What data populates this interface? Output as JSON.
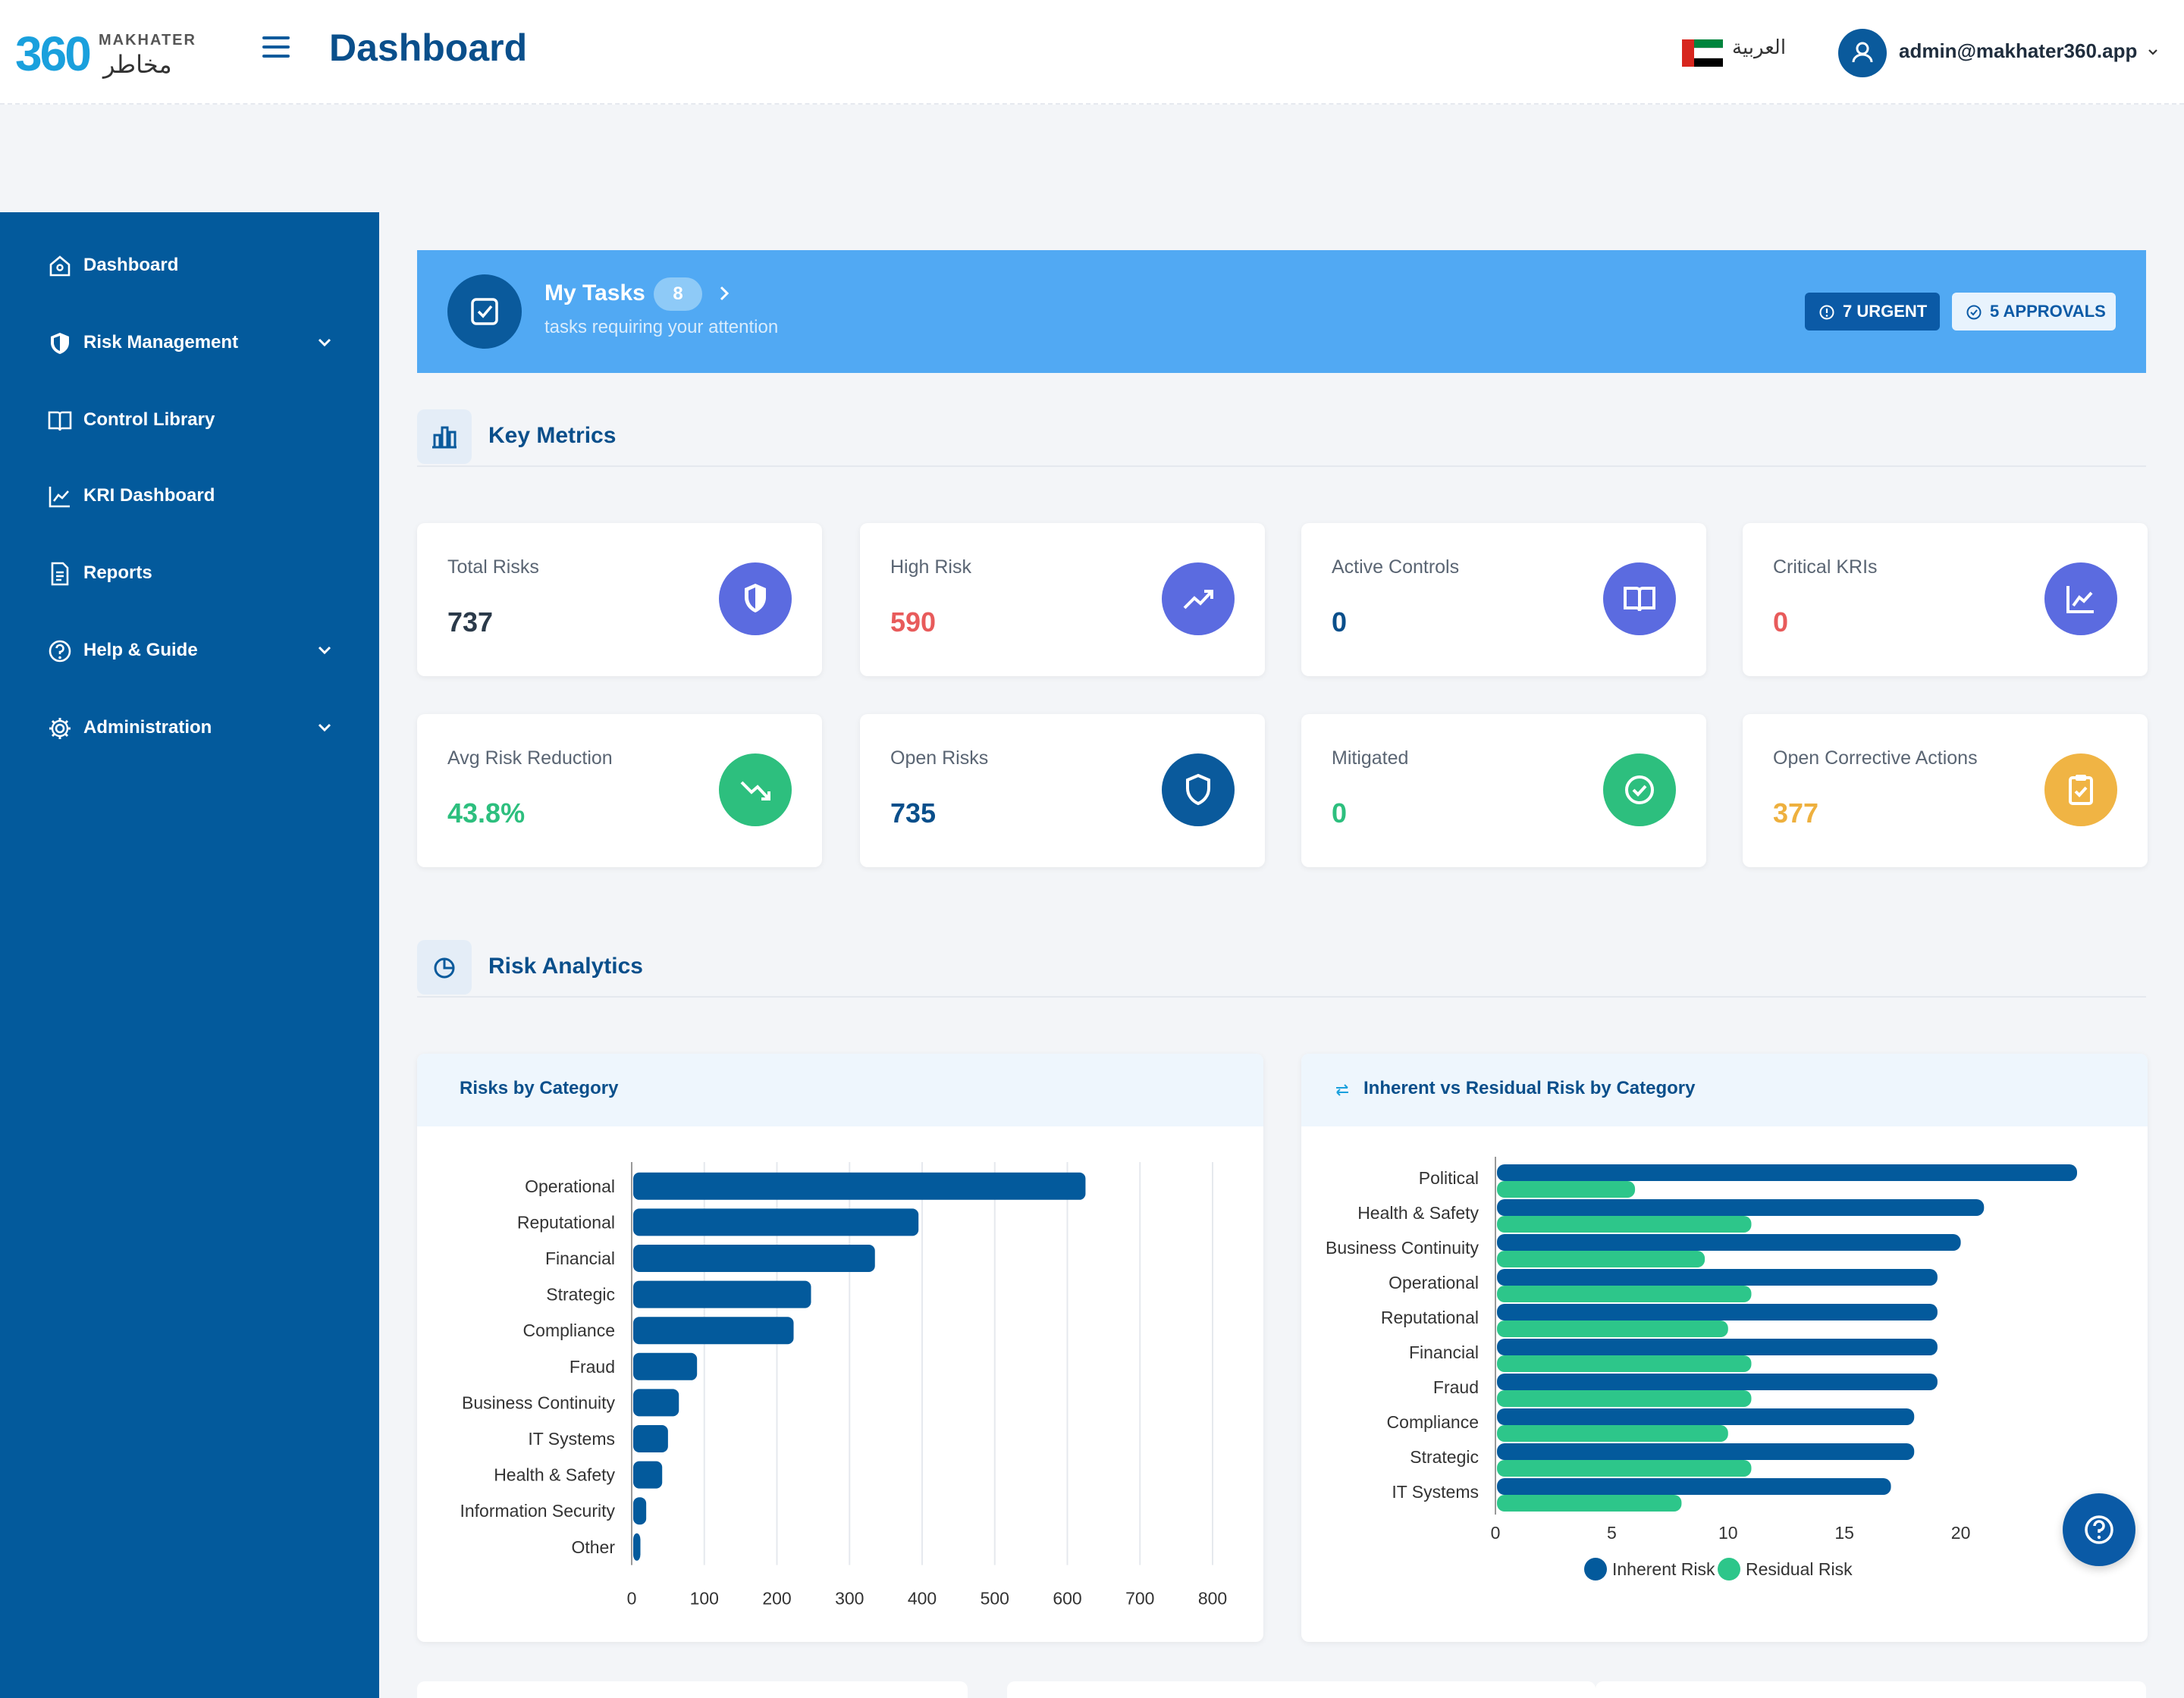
{
  "brand": {
    "logo_number": "360",
    "logo_en": "MAKHATER",
    "logo_ar": "مخاطر"
  },
  "header": {
    "title": "Dashboard",
    "language_label": "العربية",
    "user_email": "admin@makhater360.app"
  },
  "sidebar": {
    "items": [
      {
        "label": "Dashboard",
        "icon": "home-icon",
        "has_children": false
      },
      {
        "label": "Risk Management",
        "icon": "shield-icon",
        "has_children": true
      },
      {
        "label": "Control Library",
        "icon": "book-icon",
        "has_children": false
      },
      {
        "label": "KRI Dashboard",
        "icon": "line-chart-icon",
        "has_children": false
      },
      {
        "label": "Reports",
        "icon": "document-icon",
        "has_children": false
      },
      {
        "label": "Help & Guide",
        "icon": "help-circle-icon",
        "has_children": true
      },
      {
        "label": "Administration",
        "icon": "gear-icon",
        "has_children": true
      }
    ]
  },
  "tasks": {
    "title": "My Tasks",
    "count": "8",
    "subtitle": "tasks requiring your attention",
    "urgent_label": "7 URGENT",
    "approvals_label": "5 APPROVALS"
  },
  "sections": {
    "key_metrics": "Key Metrics",
    "risk_analytics": "Risk Analytics"
  },
  "metrics": [
    {
      "label": "Total Risks",
      "value": "737",
      "color": "#2b3a4a",
      "icon": "shield-half-icon",
      "icon_bg": "#5b6be0"
    },
    {
      "label": "High Risk",
      "value": "590",
      "color": "#e85b5b",
      "icon": "trend-up-icon",
      "icon_bg": "#5b6be0"
    },
    {
      "label": "Active Controls",
      "value": "0",
      "color": "#0a4f8b",
      "icon": "book-open-icon",
      "icon_bg": "#5b6be0"
    },
    {
      "label": "Critical KRIs",
      "value": "0",
      "color": "#e85b5b",
      "icon": "chart-line-icon",
      "icon_bg": "#5b6be0"
    },
    {
      "label": "Avg Risk Reduction",
      "value": "43.8%",
      "color": "#2dbf7e",
      "icon": "trend-down-icon",
      "icon_bg": "#2dbf7e"
    },
    {
      "label": "Open Risks",
      "value": "735",
      "color": "#0a4f8b",
      "icon": "shield-outline-icon",
      "icon_bg": "#0a5a9c"
    },
    {
      "label": "Mitigated",
      "value": "0",
      "color": "#2dbf7e",
      "icon": "check-circle-icon",
      "icon_bg": "#2dbf7e"
    },
    {
      "label": "Open Corrective Actions",
      "value": "377",
      "color": "#eeb03e",
      "icon": "clipboard-check-icon",
      "icon_bg": "#f0b444"
    }
  ],
  "chart_data": [
    {
      "type": "bar",
      "orientation": "horizontal",
      "title": "Risks by Category",
      "categories": [
        "Operational",
        "Reputational",
        "Financial",
        "Strategic",
        "Compliance",
        "Fraud",
        "Business Continuity",
        "IT Systems",
        "Health & Safety",
        "Information Security",
        "Other"
      ],
      "values": [
        625,
        395,
        335,
        247,
        223,
        90,
        65,
        50,
        42,
        20,
        12
      ],
      "xlim": [
        0,
        800
      ],
      "xticks": [
        0,
        100,
        200,
        300,
        400,
        500,
        600,
        700,
        800
      ],
      "grid": true,
      "color": "#035a9c"
    },
    {
      "type": "bar",
      "orientation": "horizontal",
      "title": "Inherent vs Residual Risk by Category",
      "categories": [
        "Political",
        "Health & Safety",
        "Business Continuity",
        "Operational",
        "Reputational",
        "Financial",
        "Fraud",
        "Compliance",
        "Strategic",
        "IT Systems"
      ],
      "series": [
        {
          "name": "Inherent Risk",
          "color": "#035a9c",
          "values": [
            25,
            21,
            20,
            19,
            19,
            19,
            19,
            18,
            18,
            17
          ]
        },
        {
          "name": "Residual Risk",
          "color": "#2dc68a",
          "values": [
            6,
            11,
            9,
            11,
            10,
            11,
            11,
            10,
            11,
            8
          ]
        }
      ],
      "xlim": [
        0,
        25
      ],
      "xticks": [
        0,
        5,
        10,
        15,
        20
      ],
      "grid": false,
      "legend": "bottom"
    }
  ]
}
